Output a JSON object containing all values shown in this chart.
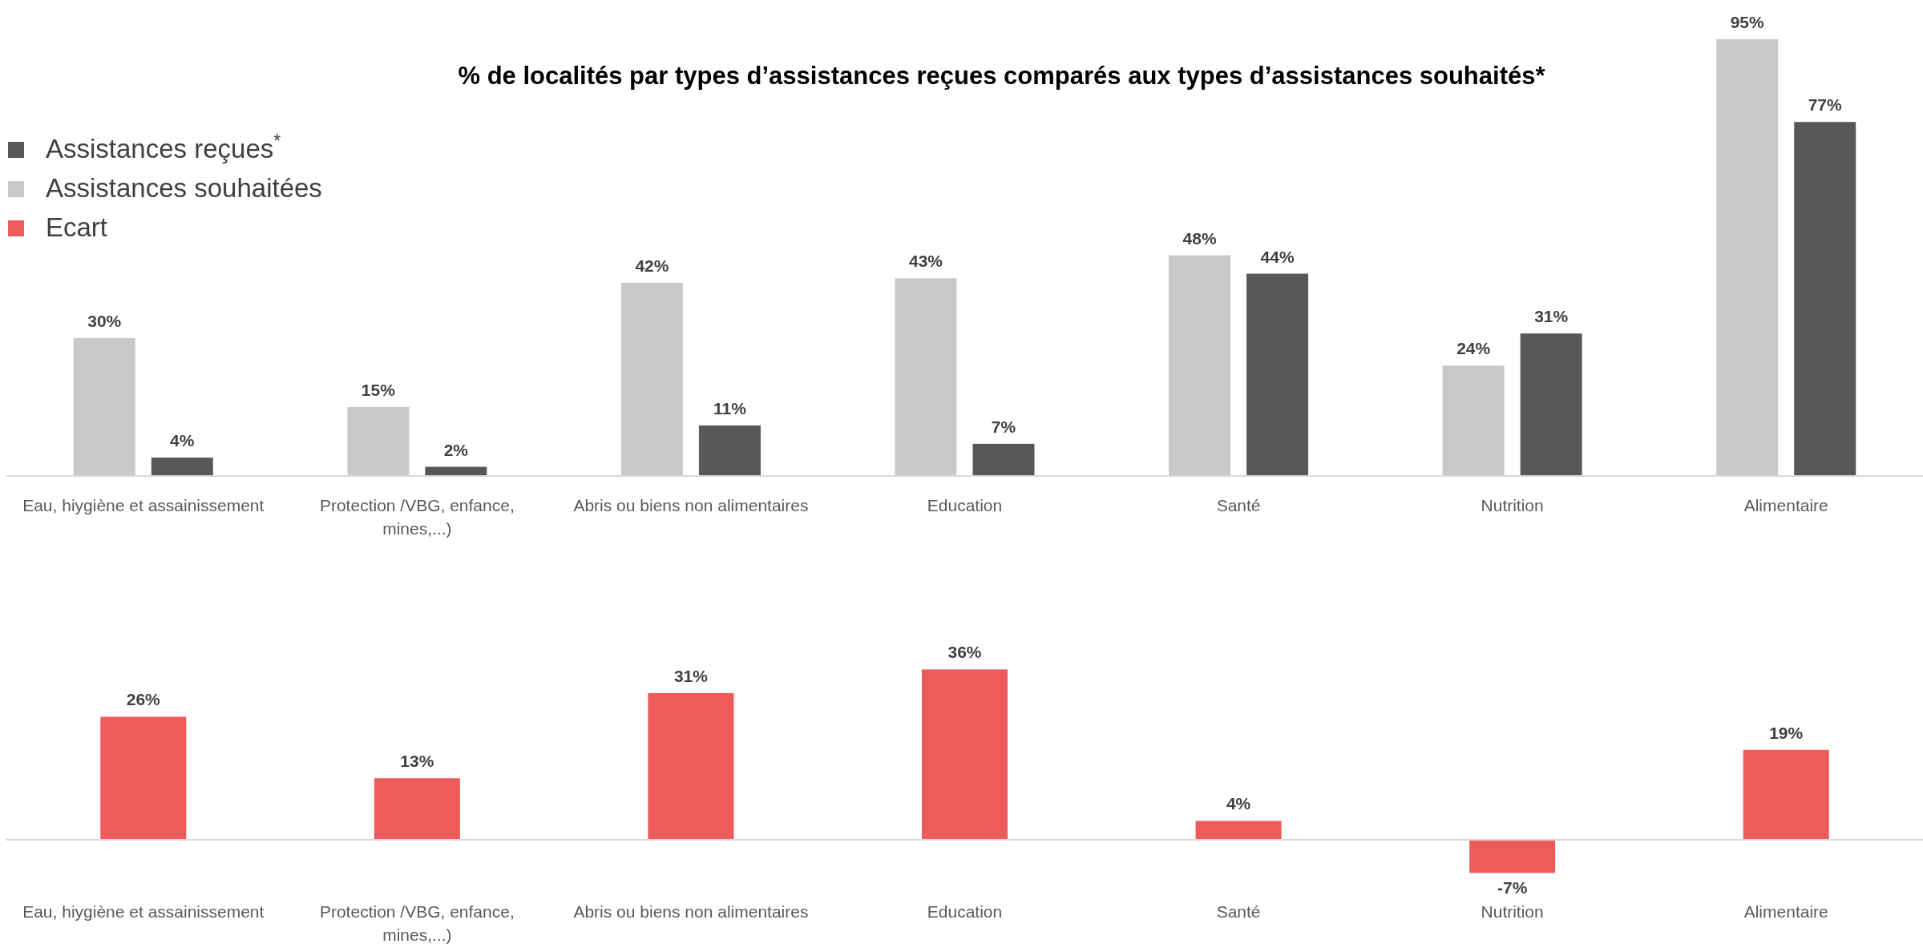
{
  "chart_data": [
    {
      "type": "bar",
      "title": "% de localités par types d’assistances reçues comparés aux types d’assistances souhaités*",
      "categories": [
        "Eau, hiygiène et assainissement",
        "Protection /VBG, enfance, mines,...)",
        "Abris ou biens non alimentaires",
        "Education",
        "Santé",
        "Nutrition",
        "Alimentaire"
      ],
      "series": [
        {
          "name": "Assistances reçues$^{*}$",
          "color": "#58585a",
          "values": [
            4,
            2,
            11,
            7,
            44,
            31,
            77
          ],
          "value_labels": [
            "4%",
            "2%",
            "11%",
            "7%",
            "44%",
            "31%",
            "77%"
          ]
        },
        {
          "name": "Assistances souhaitées",
          "color": "#c8c8ca",
          "values": [
            30,
            15,
            42,
            43,
            48,
            24,
            95
          ],
          "value_labels": [
            "30%",
            "15%",
            "42%",
            "43%",
            "48%",
            "24%",
            "95%"
          ]
        }
      ],
      "legend": "top left"
    },
    {
      "type": "bar",
      "categories": [
        "Eau, hiygiène et assainissement",
        "Protection /VBG, enfance, mines,...)",
        "Abris ou biens non alimentaires",
        "Education",
        "Santé",
        "Nutrition",
        "Alimentaire"
      ],
      "series": [
        {
          "name": "Ecart",
          "color": "#ef5a5a",
          "values": [
            26,
            13,
            31,
            36,
            4,
            -7,
            19
          ],
          "value_labels": [
            "26%",
            "13%",
            "31%",
            "36%",
            "4%",
            "-7%",
            "19%"
          ]
        }
      ],
      "legend": "top left"
    }
  ]
}
